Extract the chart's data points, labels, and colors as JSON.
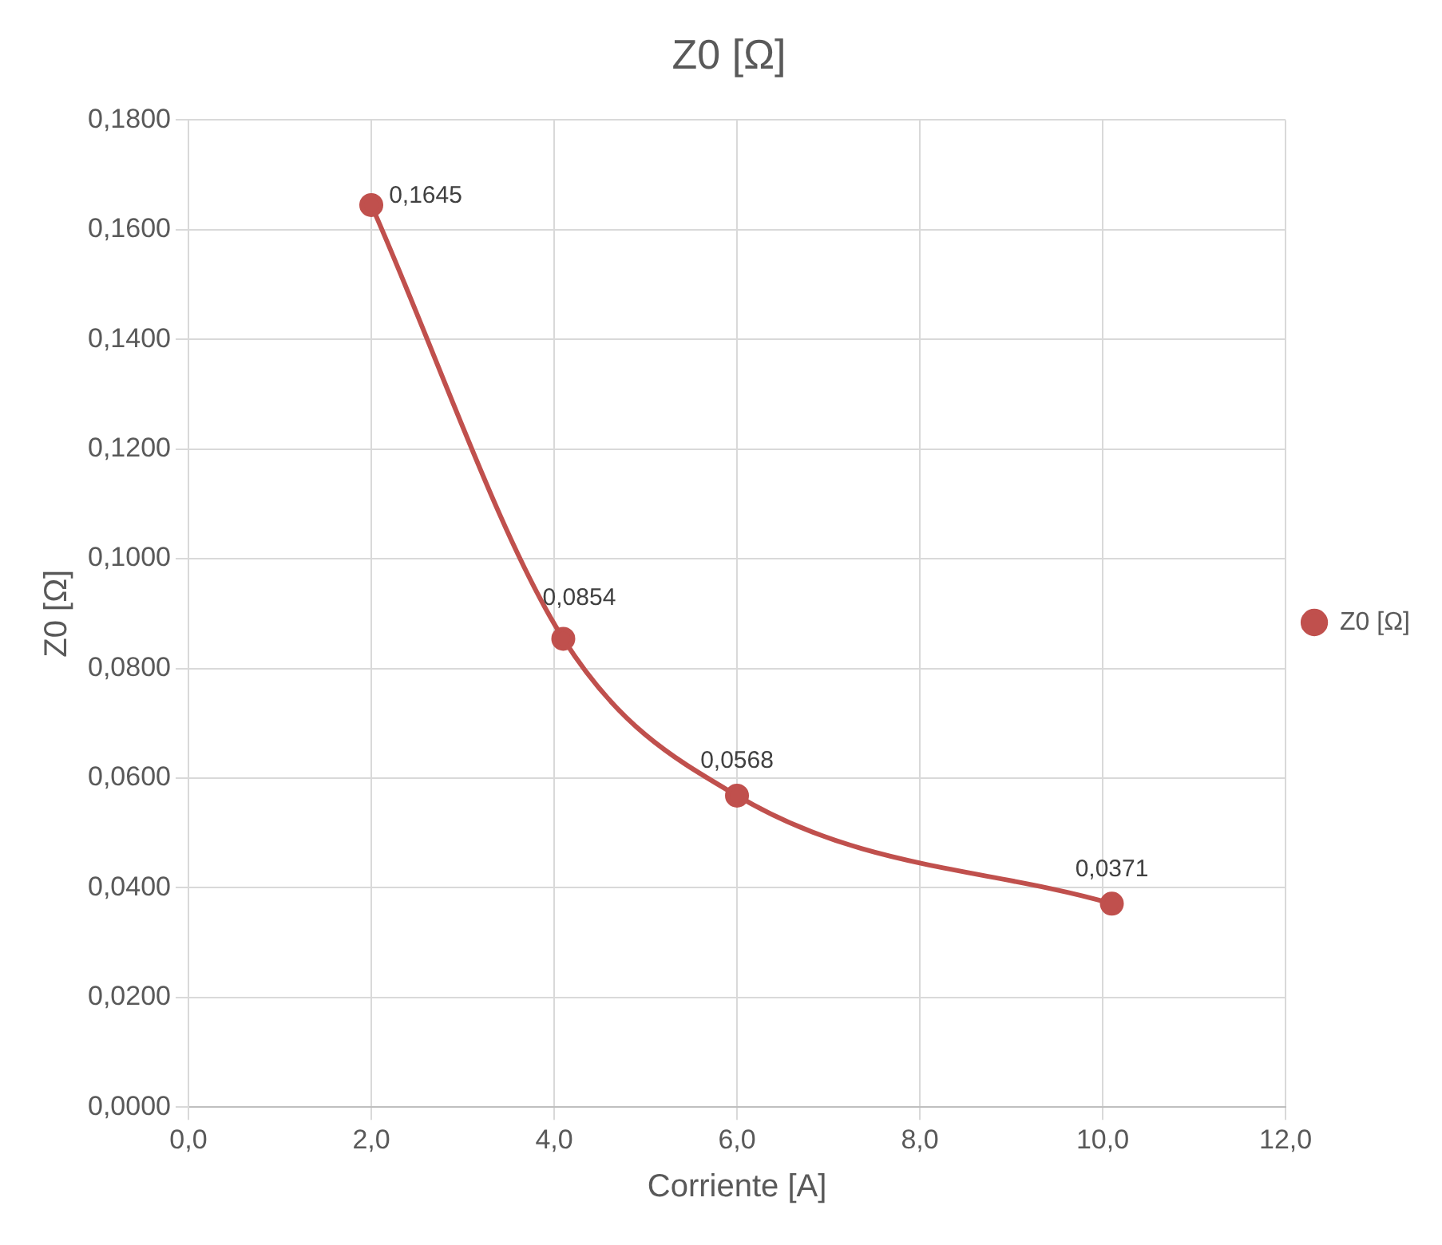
{
  "chart_data": {
    "type": "line",
    "title": "Z0 [Ω]",
    "xlabel": "Corriente [A]",
    "ylabel": "Z0 [Ω]",
    "x": [
      2.0,
      4.1,
      6.0,
      10.1
    ],
    "series": [
      {
        "name": "Z0 [Ω]",
        "color": "#c0504d",
        "values": [
          0.1645,
          0.0854,
          0.0568,
          0.0371
        ],
        "value_labels": [
          "0,1645",
          "0,0854",
          "0,0568",
          "0,0371"
        ]
      }
    ],
    "xlim": [
      0,
      12
    ],
    "xticks": [
      {
        "value": 0,
        "label": "0,0"
      },
      {
        "value": 2,
        "label": "2,0"
      },
      {
        "value": 4,
        "label": "4,0"
      },
      {
        "value": 6,
        "label": "6,0"
      },
      {
        "value": 8,
        "label": "8,0"
      },
      {
        "value": 10,
        "label": "10,0"
      },
      {
        "value": 12,
        "label": "12,0"
      }
    ],
    "ylim": [
      0,
      0.18
    ],
    "yticks": [
      {
        "value": 0,
        "label": "0,0000"
      },
      {
        "value": 0.02,
        "label": "0,0200"
      },
      {
        "value": 0.04,
        "label": "0,0400"
      },
      {
        "value": 0.06,
        "label": "0,0600"
      },
      {
        "value": 0.08,
        "label": "0,0800"
      },
      {
        "value": 0.1,
        "label": "0,1000"
      },
      {
        "value": 0.12,
        "label": "0,1200"
      },
      {
        "value": 0.14,
        "label": "0,1400"
      },
      {
        "value": 0.16,
        "label": "0,1600"
      },
      {
        "value": 0.18,
        "label": "0,1800"
      }
    ],
    "grid": true,
    "legend": "right",
    "marker": "circle",
    "line_style": "solid"
  }
}
